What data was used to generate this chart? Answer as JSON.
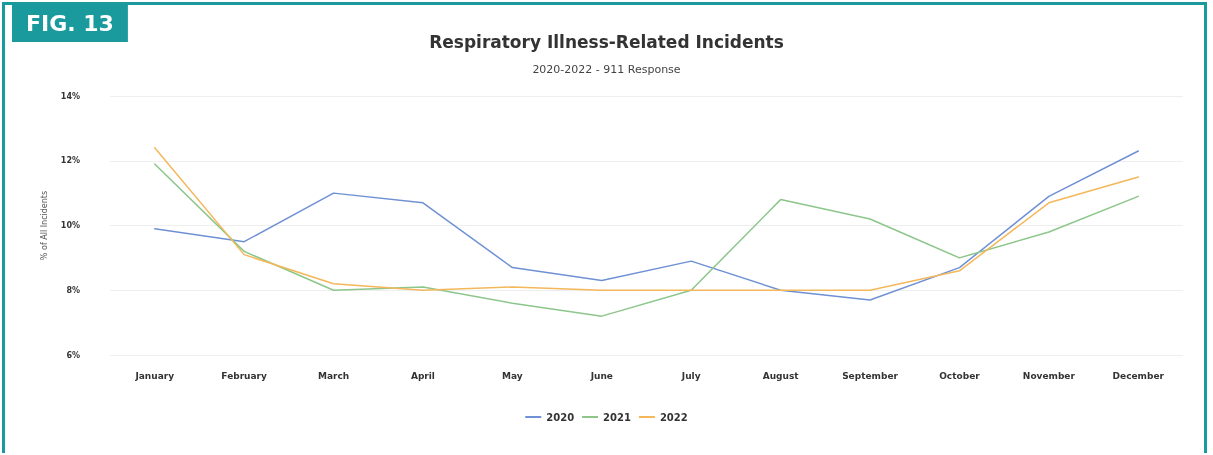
{
  "chart_data": {
    "type": "line",
    "title": "Respiratory Illness-Related Incidents",
    "subtitle": "2020-2022 - 911 Response",
    "ylabel": "% of All Incidents",
    "annotations": [
      "FIG. 13"
    ],
    "categories": [
      "January",
      "February",
      "March",
      "April",
      "May",
      "June",
      "July",
      "August",
      "September",
      "October",
      "November",
      "December"
    ],
    "series": [
      {
        "name": "2020",
        "color": "#6f91d4",
        "values": [
          9.9,
          9.5,
          11.0,
          10.7,
          8.7,
          8.3,
          8.9,
          8.0,
          7.7,
          8.7,
          10.9,
          12.3
        ]
      },
      {
        "name": "2021",
        "color": "#8cc68a",
        "values": [
          11.9,
          9.2,
          8.0,
          8.1,
          7.6,
          7.2,
          8.0,
          10.8,
          10.2,
          9.0,
          9.8,
          10.9
        ]
      },
      {
        "name": "2022",
        "color": "#f4b75a",
        "values": [
          12.4,
          9.1,
          8.2,
          8.0,
          8.1,
          8.0,
          8.0,
          8.0,
          8.0,
          8.6,
          10.7,
          11.5
        ]
      }
    ],
    "ylim": [
      6,
      14
    ],
    "yticks": [
      {
        "value": 6,
        "label": "6%"
      },
      {
        "value": 8,
        "label": "8%"
      },
      {
        "value": 10,
        "label": "10%"
      },
      {
        "value": 12,
        "label": "12%"
      },
      {
        "value": 14,
        "label": "14%"
      }
    ],
    "grid": "y",
    "legend": "bottom",
    "marker": "none",
    "line_style": "solid"
  }
}
